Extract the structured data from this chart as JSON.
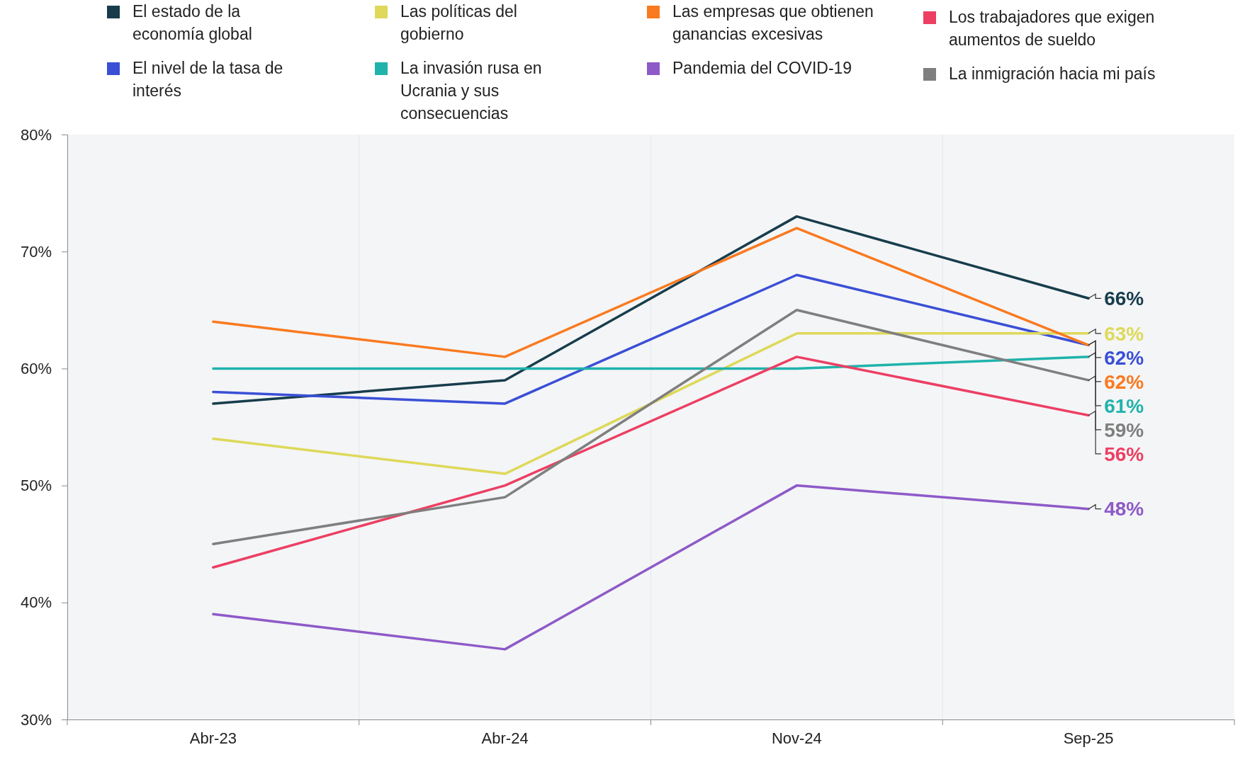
{
  "chart_data": {
    "type": "line",
    "categories": [
      "Abr-23",
      "Abr-24",
      "Nov-24",
      "Sep-25"
    ],
    "ylim": [
      30,
      80
    ],
    "yticks": [
      {
        "value": 30,
        "label": "30%"
      },
      {
        "value": 40,
        "label": "40%"
      },
      {
        "value": 50,
        "label": "50%"
      },
      {
        "value": 60,
        "label": "60%"
      },
      {
        "value": 70,
        "label": "70%"
      },
      {
        "value": 80,
        "label": "80%"
      }
    ],
    "grid": "x",
    "legend": "top",
    "marker": "none",
    "line_style": "solid",
    "series": [
      {
        "name": "El estado de la economía global",
        "color": "#173d4b",
        "values": [
          57,
          59,
          73,
          66
        ],
        "value_labels": [
          null,
          null,
          null,
          "66%"
        ]
      },
      {
        "name": "El nivel de la tasa de interés",
        "color": "#3a4fd6",
        "values": [
          58,
          57,
          68,
          62
        ],
        "value_labels": [
          null,
          null,
          null,
          "62%"
        ]
      },
      {
        "name": "Las políticas del gobierno",
        "color": "#ded95a",
        "values": [
          54,
          51,
          63,
          63
        ],
        "value_labels": [
          null,
          null,
          null,
          "63%"
        ]
      },
      {
        "name": "La invasión rusa en Ucrania y sus consecuencias",
        "color": "#1fb3ab",
        "values": [
          60,
          60,
          60,
          61
        ],
        "value_labels": [
          null,
          null,
          null,
          "61%"
        ]
      },
      {
        "name": "Las empresas que obtienen ganancias excesivas",
        "color": "#f97a1f",
        "values": [
          64,
          61,
          72,
          62
        ],
        "value_labels": [
          null,
          null,
          null,
          "62%"
        ]
      },
      {
        "name": "Pandemia del COVID-19",
        "color": "#8e5ac8",
        "values": [
          39,
          36,
          50,
          48
        ],
        "value_labels": [
          null,
          null,
          null,
          "48%"
        ]
      },
      {
        "name": "Los trabajadores que exigen aumentos de sueldo",
        "color": "#ec3f62",
        "values": [
          43,
          50,
          61,
          56
        ],
        "value_labels": [
          null,
          null,
          null,
          "56%"
        ]
      },
      {
        "name": "La inmigración hacia mi país",
        "color": "#7f7f7f",
        "values": [
          45,
          49,
          65,
          59
        ],
        "value_labels": [
          null,
          null,
          null,
          "59%"
        ]
      }
    ]
  }
}
